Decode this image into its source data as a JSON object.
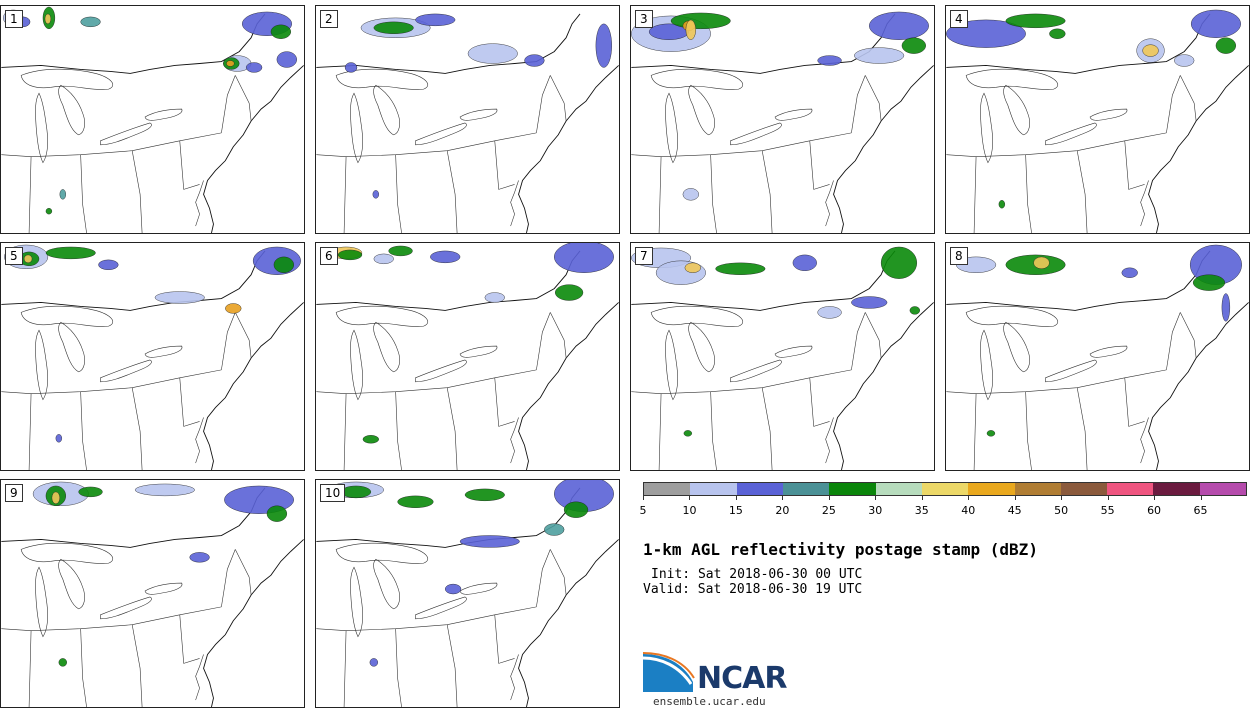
{
  "panels": [
    {
      "label": "1",
      "blobs": [
        [
          12,
          12,
          10,
          8,
          "#b8c4ee"
        ],
        [
          22,
          16,
          7,
          5,
          "#5a62d6"
        ],
        [
          48,
          12,
          6,
          11,
          "#0a8a0a"
        ],
        [
          47,
          13,
          3,
          5,
          "#f0c85a"
        ],
        [
          90,
          16,
          10,
          5,
          "#4fa0a0"
        ],
        [
          268,
          18,
          25,
          12,
          "#5a62d6"
        ],
        [
          282,
          26,
          10,
          7,
          "#0a8a0a"
        ],
        [
          238,
          58,
          14,
          8,
          "#b8c4ee"
        ],
        [
          232,
          58,
          8,
          6,
          "#0a8a0a"
        ],
        [
          231,
          58,
          4,
          3,
          "#e8a020"
        ],
        [
          255,
          62,
          8,
          5,
          "#5a62d6"
        ],
        [
          288,
          54,
          10,
          8,
          "#5a62d6"
        ],
        [
          62,
          190,
          3,
          5,
          "#4fa0a0"
        ],
        [
          48,
          207,
          3,
          3,
          "#0a8a0a"
        ]
      ]
    },
    {
      "label": "2",
      "blobs": [
        [
          80,
          22,
          35,
          10,
          "#b8c4ee"
        ],
        [
          78,
          22,
          20,
          6,
          "#0a8a0a"
        ],
        [
          120,
          14,
          20,
          6,
          "#5a62d6"
        ],
        [
          178,
          48,
          25,
          10,
          "#b8c4ee"
        ],
        [
          220,
          55,
          10,
          6,
          "#5a62d6"
        ],
        [
          290,
          40,
          8,
          22,
          "#5a62d6"
        ],
        [
          35,
          62,
          6,
          5,
          "#5a62d6"
        ],
        [
          60,
          190,
          3,
          4,
          "#5a62d6"
        ]
      ]
    },
    {
      "label": "3",
      "blobs": [
        [
          40,
          28,
          40,
          18,
          "#b8c4ee"
        ],
        [
          38,
          26,
          20,
          8,
          "#5a62d6"
        ],
        [
          70,
          15,
          30,
          8,
          "#0a8a0a"
        ],
        [
          58,
          20,
          6,
          5,
          "#e8a020"
        ],
        [
          60,
          24,
          5,
          10,
          "#f0c85a"
        ],
        [
          270,
          20,
          30,
          14,
          "#5a62d6"
        ],
        [
          285,
          40,
          12,
          8,
          "#0a8a0a"
        ],
        [
          250,
          50,
          25,
          8,
          "#b8c4ee"
        ],
        [
          200,
          55,
          12,
          5,
          "#5a62d6"
        ],
        [
          60,
          190,
          8,
          6,
          "#b8c4ee"
        ]
      ]
    },
    {
      "label": "4",
      "blobs": [
        [
          40,
          28,
          40,
          14,
          "#5a62d6"
        ],
        [
          90,
          15,
          30,
          7,
          "#0a8a0a"
        ],
        [
          112,
          28,
          8,
          5,
          "#0a8a0a"
        ],
        [
          206,
          45,
          14,
          12,
          "#b8c4ee"
        ],
        [
          206,
          45,
          8,
          6,
          "#f0c85a"
        ],
        [
          272,
          18,
          25,
          14,
          "#5a62d6"
        ],
        [
          282,
          40,
          10,
          8,
          "#0a8a0a"
        ],
        [
          240,
          55,
          10,
          6,
          "#b8c4ee"
        ],
        [
          56,
          200,
          3,
          4,
          "#0a8a0a"
        ]
      ]
    },
    {
      "label": "5",
      "blobs": [
        [
          25,
          14,
          22,
          12,
          "#b8c4ee"
        ],
        [
          28,
          16,
          10,
          7,
          "#0a8a0a"
        ],
        [
          27,
          16,
          4,
          4,
          "#f0c85a"
        ],
        [
          70,
          10,
          25,
          6,
          "#0a8a0a"
        ],
        [
          108,
          22,
          10,
          5,
          "#5a62d6"
        ],
        [
          180,
          55,
          25,
          6,
          "#b8c4ee"
        ],
        [
          234,
          66,
          8,
          5,
          "#e8a020"
        ],
        [
          278,
          18,
          24,
          14,
          "#5a62d6"
        ],
        [
          285,
          22,
          10,
          8,
          "#0a8a0a"
        ],
        [
          58,
          197,
          3,
          4,
          "#5a62d6"
        ]
      ]
    },
    {
      "label": "6",
      "blobs": [
        [
          30,
          10,
          16,
          6,
          "#f0c85a"
        ],
        [
          34,
          12,
          12,
          5,
          "#0a8a0a"
        ],
        [
          68,
          16,
          10,
          5,
          "#b8c4ee"
        ],
        [
          85,
          8,
          12,
          5,
          "#0a8a0a"
        ],
        [
          130,
          14,
          15,
          6,
          "#5a62d6"
        ],
        [
          270,
          14,
          30,
          16,
          "#5a62d6"
        ],
        [
          255,
          50,
          14,
          8,
          "#0a8a0a"
        ],
        [
          180,
          55,
          10,
          5,
          "#b8c4ee"
        ],
        [
          55,
          198,
          8,
          4,
          "#0a8a0a"
        ]
      ]
    },
    {
      "label": "7",
      "blobs": [
        [
          30,
          15,
          30,
          10,
          "#b8c4ee"
        ],
        [
          50,
          30,
          25,
          12,
          "#b8c4ee"
        ],
        [
          62,
          25,
          8,
          5,
          "#f0c85a"
        ],
        [
          110,
          26,
          25,
          6,
          "#0a8a0a"
        ],
        [
          175,
          20,
          12,
          8,
          "#5a62d6"
        ],
        [
          270,
          20,
          18,
          16,
          "#0a8a0a"
        ],
        [
          240,
          60,
          18,
          6,
          "#5a62d6"
        ],
        [
          200,
          70,
          12,
          6,
          "#b8c4ee"
        ],
        [
          286,
          68,
          5,
          4,
          "#0a8a0a"
        ],
        [
          57,
          192,
          4,
          3,
          "#0a8a0a"
        ]
      ]
    },
    {
      "label": "8",
      "blobs": [
        [
          30,
          22,
          20,
          8,
          "#b8c4ee"
        ],
        [
          90,
          22,
          30,
          10,
          "#0a8a0a"
        ],
        [
          96,
          20,
          8,
          6,
          "#f0c85a"
        ],
        [
          185,
          30,
          8,
          5,
          "#5a62d6"
        ],
        [
          272,
          22,
          26,
          20,
          "#5a62d6"
        ],
        [
          265,
          40,
          16,
          8,
          "#0a8a0a"
        ],
        [
          282,
          65,
          4,
          14,
          "#5a62d6"
        ],
        [
          45,
          192,
          4,
          3,
          "#0a8a0a"
        ]
      ]
    },
    {
      "label": "9",
      "blobs": [
        [
          60,
          14,
          28,
          12,
          "#b8c4ee"
        ],
        [
          55,
          16,
          10,
          10,
          "#0a8a0a"
        ],
        [
          55,
          18,
          4,
          6,
          "#f0c85a"
        ],
        [
          90,
          12,
          12,
          5,
          "#0a8a0a"
        ],
        [
          165,
          10,
          30,
          6,
          "#b8c4ee"
        ],
        [
          260,
          20,
          35,
          14,
          "#5a62d6"
        ],
        [
          278,
          34,
          10,
          8,
          "#0a8a0a"
        ],
        [
          200,
          78,
          10,
          5,
          "#5a62d6"
        ],
        [
          62,
          184,
          4,
          4,
          "#0a8a0a"
        ]
      ]
    },
    {
      "label": "10",
      "blobs": [
        [
          40,
          10,
          28,
          8,
          "#b8c4ee"
        ],
        [
          40,
          12,
          15,
          6,
          "#0a8a0a"
        ],
        [
          100,
          22,
          18,
          6,
          "#0a8a0a"
        ],
        [
          170,
          15,
          20,
          6,
          "#0a8a0a"
        ],
        [
          175,
          62,
          30,
          6,
          "#5a62d6"
        ],
        [
          270,
          14,
          30,
          18,
          "#5a62d6"
        ],
        [
          262,
          30,
          12,
          8,
          "#0a8a0a"
        ],
        [
          240,
          50,
          10,
          6,
          "#4fa0a0"
        ],
        [
          138,
          110,
          8,
          5,
          "#5a62d6"
        ],
        [
          58,
          184,
          4,
          4,
          "#5a62d6"
        ]
      ]
    }
  ],
  "colorbar": {
    "colors": [
      "#9e9e9e",
      "#b8c4ee",
      "#5a62d6",
      "#4b9196",
      "#0a850a",
      "#b7dcbd",
      "#ecd868",
      "#e9a81e",
      "#b07d33",
      "#8b5a3c",
      "#ef5580",
      "#6b1b3f",
      "#b54bac"
    ],
    "tick_labels": [
      "5",
      "10",
      "15",
      "20",
      "25",
      "30",
      "35",
      "40",
      "45",
      "50",
      "55",
      "60",
      "65"
    ]
  },
  "title": "1-km AGL reflectivity postage stamp (dBZ)",
  "init": "Init: Sat 2018-06-30 00 UTC",
  "valid": "Valid: Sat 2018-06-30 19 UTC",
  "logo": {
    "text": "NCAR",
    "url": "ensemble.ucar.edu"
  }
}
